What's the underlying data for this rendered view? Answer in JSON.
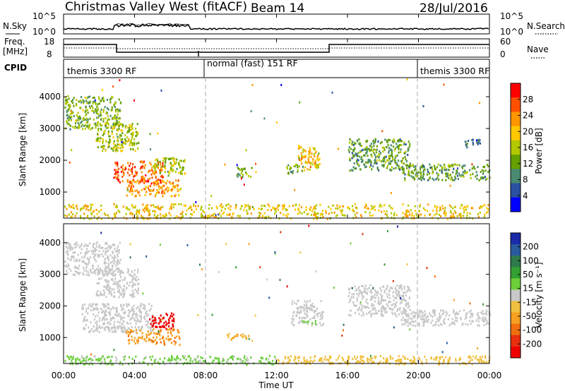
{
  "header": {
    "title": "Christmas Valley West (fitACF)",
    "beam": "Beam 14",
    "date": "28/Jul/2016"
  },
  "panels": {
    "nsky": {
      "label": "N.Sky",
      "right_label": "N.Search",
      "ticks": [
        "10^5",
        "10^0"
      ]
    },
    "freq": {
      "label_line1": "Freq.",
      "label_line2": "[MHz]",
      "right_label": "Nave",
      "left_ticks": [
        "18",
        "8"
      ],
      "right_ticks": [
        "60",
        "0"
      ]
    },
    "cpid": {
      "label": "CPID",
      "segments": [
        {
          "name": "themis 3300 RF",
          "start_h": 0,
          "end_h": 7.9
        },
        {
          "name": "normal (fast) 151 RF",
          "start_h": 7.9,
          "end_h": 20.0
        },
        {
          "name": "themis 3300 RF",
          "start_h": 20.0,
          "end_h": 24
        }
      ]
    }
  },
  "axes": {
    "ylabel": "Slant Range [km]",
    "xlabel": "Time UT",
    "yticks": [
      "4000",
      "3000",
      "2000",
      "1000"
    ],
    "xticks": [
      "00:00",
      "04:00",
      "08:00",
      "12:00",
      "16:00",
      "20:00",
      "00:00"
    ]
  },
  "colorbars": {
    "power": {
      "label": "Power [dB]",
      "ticks": [
        "28",
        "24",
        "20",
        "16",
        "12",
        "8",
        "4"
      ],
      "colors": [
        "#ff0000",
        "#ff5000",
        "#ff9600",
        "#ffc800",
        "#b4c800",
        "#64a000",
        "#4a8a70",
        "#2a50a0",
        "#0000ff"
      ]
    },
    "velocity": {
      "label": "Velocity [m s⁻¹]",
      "ticks": [
        "200",
        "100",
        "50",
        "15",
        "-15",
        "-50",
        "-100",
        "-200"
      ],
      "colors": [
        "#1a2aa8",
        "#2a5aa0",
        "#2e7a4a",
        "#33a033",
        "#6ccf3a",
        "#c8c8c8",
        "#f0c040",
        "#f5a020",
        "#f07010",
        "#e83010",
        "#ee0000"
      ]
    }
  },
  "chart_data": [
    {
      "type": "heatmap",
      "name": "power",
      "ylabel": "Slant Range [km]",
      "xlabel": "Time UT",
      "xlim_hours": [
        0,
        24
      ],
      "ylim_km": [
        180,
        4600
      ],
      "zlabel": "Power [dB]",
      "zlim": [
        0,
        30
      ],
      "regions": [
        {
          "t0": 0.05,
          "t1": 3.2,
          "r0": 3000,
          "r1": 4050,
          "value": 12
        },
        {
          "t0": 1.8,
          "t1": 4.2,
          "r0": 2300,
          "r1": 3200,
          "value": 14
        },
        {
          "t0": 2.8,
          "t1": 5.6,
          "r0": 1300,
          "r1": 2000,
          "value": 26
        },
        {
          "t0": 3.5,
          "t1": 6.5,
          "r0": 900,
          "r1": 1400,
          "value": 22
        },
        {
          "t0": 5.0,
          "t1": 6.8,
          "r0": 1600,
          "r1": 2100,
          "value": 14
        },
        {
          "t0": 9.7,
          "t1": 10.6,
          "r0": 1500,
          "r1": 1800,
          "value": 12
        },
        {
          "t0": 13.2,
          "t1": 14.4,
          "r0": 1700,
          "r1": 2500,
          "value": 20
        },
        {
          "t0": 12.5,
          "t1": 13.5,
          "r0": 1600,
          "r1": 1900,
          "value": 10
        },
        {
          "t0": 16.0,
          "t1": 19.5,
          "r0": 1700,
          "r1": 2700,
          "value": 10
        },
        {
          "t0": 19.0,
          "t1": 24.0,
          "r0": 1400,
          "r1": 1900,
          "value": 10
        },
        {
          "t0": 22.5,
          "t1": 23.5,
          "r0": 2400,
          "r1": 2700,
          "value": 6
        },
        {
          "t0": 0.0,
          "t1": 24.0,
          "r0": 180,
          "r1": 650,
          "value": 18
        }
      ]
    },
    {
      "type": "heatmap",
      "name": "velocity",
      "ylabel": "Slant Range [km]",
      "xlabel": "Time UT",
      "xlim_hours": [
        0,
        24
      ],
      "ylim_km": [
        180,
        4600
      ],
      "zlabel": "Velocity [m s-1]",
      "zlim": [
        -200,
        200
      ],
      "regions": [
        {
          "t0": 0.05,
          "t1": 3.2,
          "r0": 3000,
          "r1": 4050,
          "value": 0
        },
        {
          "t0": 1.8,
          "t1": 4.2,
          "r0": 2300,
          "r1": 3200,
          "value": 0
        },
        {
          "t0": 1.0,
          "t1": 5.0,
          "r0": 1200,
          "r1": 2100,
          "value": 0
        },
        {
          "t0": 4.8,
          "t1": 6.2,
          "r0": 1300,
          "r1": 1800,
          "value": -220
        },
        {
          "t0": 3.5,
          "t1": 6.5,
          "r0": 800,
          "r1": 1300,
          "value": -90
        },
        {
          "t0": 9.0,
          "t1": 10.4,
          "r0": 950,
          "r1": 1150,
          "value": -60
        },
        {
          "t0": 12.8,
          "t1": 14.6,
          "r0": 1400,
          "r1": 2200,
          "value": 0
        },
        {
          "t0": 13.4,
          "t1": 14.2,
          "r0": 1450,
          "r1": 1600,
          "value": 40
        },
        {
          "t0": 16.0,
          "t1": 19.5,
          "r0": 1700,
          "r1": 2700,
          "value": 0
        },
        {
          "t0": 19.0,
          "t1": 24.0,
          "r0": 1400,
          "r1": 1900,
          "value": 0
        },
        {
          "t0": 0.0,
          "t1": 12.0,
          "r0": 180,
          "r1": 450,
          "value": 30
        },
        {
          "t0": 12.0,
          "t1": 24.0,
          "r0": 180,
          "r1": 450,
          "value": -40
        }
      ]
    }
  ]
}
